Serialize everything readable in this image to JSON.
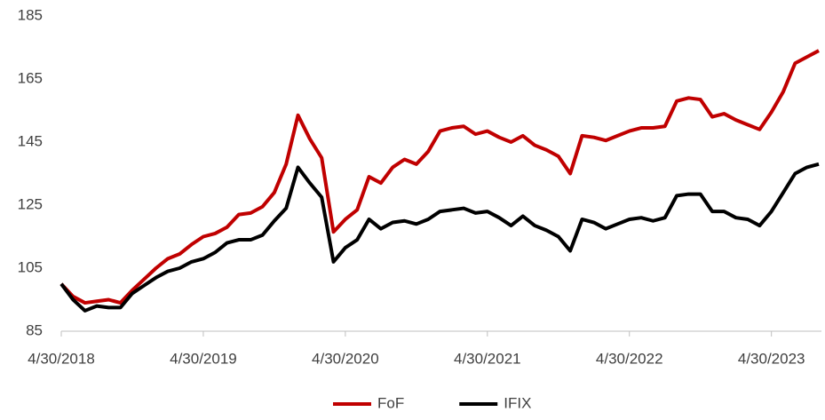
{
  "chart_data": {
    "type": "line",
    "categories": [
      "4/30/2018",
      null,
      null,
      null,
      null,
      null,
      null,
      null,
      null,
      null,
      null,
      null,
      "4/30/2019",
      null,
      null,
      null,
      null,
      null,
      null,
      null,
      null,
      null,
      null,
      null,
      "4/30/2020",
      null,
      null,
      null,
      null,
      null,
      null,
      null,
      null,
      null,
      null,
      null,
      "4/30/2021",
      null,
      null,
      null,
      null,
      null,
      null,
      null,
      null,
      null,
      null,
      null,
      "4/30/2022",
      null,
      null,
      null,
      null,
      null,
      null,
      null,
      null,
      null,
      null,
      null,
      "4/30/2023",
      null,
      null,
      null,
      null
    ],
    "series": [
      {
        "name": "FoF",
        "color": "#c00000",
        "values": [
          100,
          96,
          94,
          94.5,
          95,
          94,
          98,
          101.5,
          105,
          108,
          109.5,
          112.5,
          115,
          116,
          118,
          122,
          122.5,
          124.5,
          129,
          138,
          153.5,
          146,
          140,
          116.5,
          120.5,
          123.5,
          134,
          132,
          137,
          139.5,
          138,
          142,
          148.5,
          149.5,
          150,
          147.5,
          148.5,
          146.5,
          145,
          147,
          144,
          142.5,
          140.5,
          135,
          147,
          146.5,
          145.5,
          147,
          148.5,
          149.5,
          149.5,
          150,
          158,
          159,
          158.5,
          153,
          154,
          152,
          150.5,
          149,
          154.5,
          161,
          170,
          172,
          174
        ]
      },
      {
        "name": "IFIX",
        "color": "#000000",
        "values": [
          100,
          95,
          91.5,
          93,
          92.5,
          92.5,
          97,
          99.5,
          102,
          104,
          105,
          107,
          108,
          110,
          113,
          114,
          114,
          115.5,
          120,
          124,
          137,
          132,
          127.5,
          107,
          111.5,
          114,
          120.5,
          117.5,
          119.5,
          120,
          119,
          120.5,
          123,
          123.5,
          124,
          122.5,
          123,
          121,
          118.5,
          121.5,
          118.5,
          117,
          115,
          110.5,
          120.5,
          119.5,
          117.5,
          119,
          120.5,
          121,
          120,
          121,
          128,
          128.5,
          128.5,
          123,
          123,
          121,
          120.5,
          118.5,
          123,
          129,
          135,
          137,
          138
        ]
      }
    ],
    "ylim": [
      85,
      185
    ],
    "yticks": [
      85,
      105,
      125,
      145,
      165,
      185
    ],
    "grid": false,
    "legend": "bottom"
  }
}
